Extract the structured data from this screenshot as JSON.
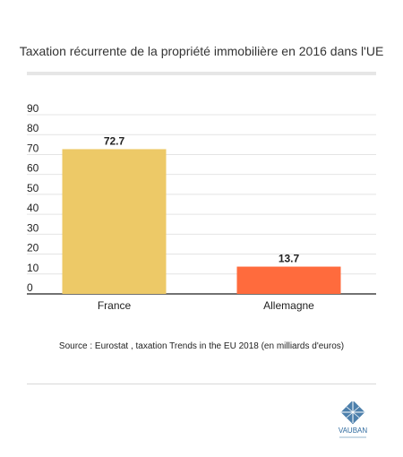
{
  "page": {
    "title": "Taxation récurrente de la propriété immobilière en 2016 dans l'UE",
    "source": "Source : Eurostat , taxation Trends in the EU 2018 (en milliards d'euros)",
    "logo_text": "VAUBAN"
  },
  "chart_data": {
    "type": "bar",
    "title": "Taxation récurrente de la propriété immobilière en 2016 dans l'UE",
    "categories": [
      "France",
      "Allemagne"
    ],
    "values": [
      72.7,
      13.7
    ],
    "value_labels": [
      "72.7",
      "13.7"
    ],
    "bar_colors": [
      "#edc967",
      "#ff6b3d"
    ],
    "ylim": [
      0,
      90
    ],
    "yticks": [
      0,
      10,
      20,
      30,
      40,
      50,
      60,
      70,
      80,
      90
    ],
    "xlabel": "",
    "ylabel": "",
    "grid": true,
    "legend": "none"
  },
  "colors": {
    "grid": "#e4e4e4",
    "axis": "#444444",
    "text": "#222222",
    "logo": "#2f6a9e"
  }
}
